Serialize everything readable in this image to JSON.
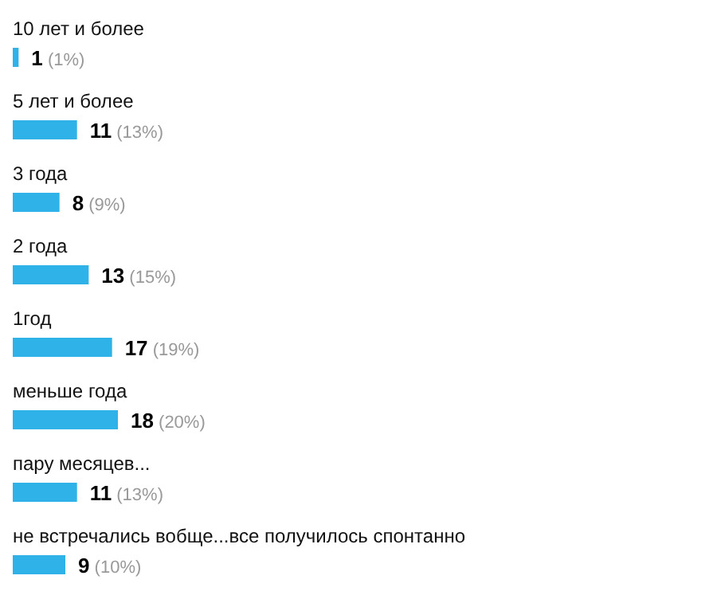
{
  "chart_data": {
    "type": "bar",
    "orientation": "horizontal",
    "categories": [
      "10 лет и более",
      "5 лет и более",
      "3 года",
      "2 года",
      "1год",
      "меньше года",
      "пару месяцев...",
      "не встречались вобще...все получилось спонтанно"
    ],
    "values": [
      1,
      11,
      8,
      13,
      17,
      18,
      11,
      9
    ],
    "color": "#2fb2e8",
    "value_labels": [
      "1 (1%)",
      "11 (13%)",
      "8 (9%)",
      "13 (15%)",
      "17 (19%)",
      "18 (20%)",
      "11 (13%)",
      "9 (10%)"
    ]
  }
}
